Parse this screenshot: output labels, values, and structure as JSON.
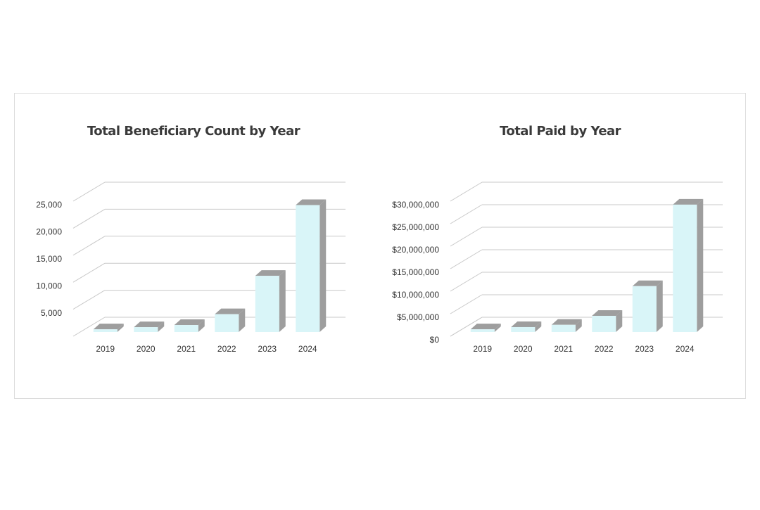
{
  "chart_data": [
    {
      "type": "bar3d",
      "title": "Total Beneficiary Count by Year",
      "categories": [
        "2019",
        "2020",
        "2021",
        "2022",
        "2023",
        "2024"
      ],
      "values": [
        500,
        900,
        1300,
        3300,
        10400,
        23500
      ],
      "color": "#d9f5f8",
      "side_color": "#9e9e9e",
      "ylim": [
        0,
        25000
      ],
      "yticks": [
        {
          "value": 5000,
          "label": "5,000"
        },
        {
          "value": 10000,
          "label": "10,000"
        },
        {
          "value": 15000,
          "label": "15,000"
        },
        {
          "value": 20000,
          "label": "20,000"
        },
        {
          "value": 25000,
          "label": "25,000"
        }
      ],
      "grid": true
    },
    {
      "type": "bar3d",
      "title": "Total Paid by Year",
      "categories": [
        "2019",
        "2020",
        "2021",
        "2022",
        "2023",
        "2024"
      ],
      "values": [
        600000,
        1100000,
        1600000,
        3600000,
        10200000,
        28300000
      ],
      "color": "#d9f5f8",
      "side_color": "#9e9e9e",
      "ylim": [
        0,
        30000000
      ],
      "yticks": [
        {
          "value": 0,
          "label": "$0"
        },
        {
          "value": 5000000,
          "label": "$5,000,000"
        },
        {
          "value": 10000000,
          "label": "$10,000,000"
        },
        {
          "value": 15000000,
          "label": "$15,000,000"
        },
        {
          "value": 20000000,
          "label": "$20,000,000"
        },
        {
          "value": 25000000,
          "label": "$25,000,000"
        },
        {
          "value": 30000000,
          "label": "$30,000,000"
        }
      ],
      "grid": true
    }
  ]
}
